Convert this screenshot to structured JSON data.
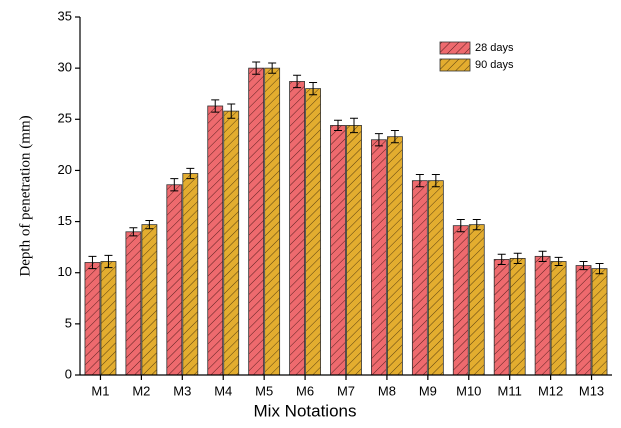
{
  "chart_data": {
    "type": "bar",
    "x_label": "Mix Notations",
    "y_label": "Depth of penetration (mm)",
    "categories": [
      "M1",
      "M2",
      "M3",
      "M4",
      "M5",
      "M6",
      "M7",
      "M8",
      "M9",
      "M10",
      "M11",
      "M12",
      "M13"
    ],
    "series": [
      {
        "name": "28 days",
        "color": "#ee6a6e",
        "values": [
          11.0,
          14.0,
          18.6,
          26.3,
          30.0,
          28.7,
          24.4,
          23.0,
          19.0,
          14.6,
          11.3,
          11.6,
          10.7
        ],
        "errors": [
          0.6,
          0.4,
          0.6,
          0.6,
          0.6,
          0.6,
          0.5,
          0.6,
          0.6,
          0.6,
          0.5,
          0.5,
          0.4
        ]
      },
      {
        "name": "90 days",
        "color": "#e3ad2f",
        "values": [
          11.1,
          14.7,
          19.7,
          25.8,
          30.0,
          28.0,
          24.4,
          23.3,
          19.0,
          14.7,
          11.4,
          11.1,
          10.4
        ],
        "errors": [
          0.6,
          0.4,
          0.5,
          0.7,
          0.5,
          0.6,
          0.7,
          0.6,
          0.6,
          0.5,
          0.5,
          0.4,
          0.5
        ]
      }
    ],
    "ylim": [
      0,
      35
    ],
    "yticks": [
      0,
      5,
      10,
      15,
      20,
      25,
      30,
      35
    ],
    "legend": "upper right"
  }
}
